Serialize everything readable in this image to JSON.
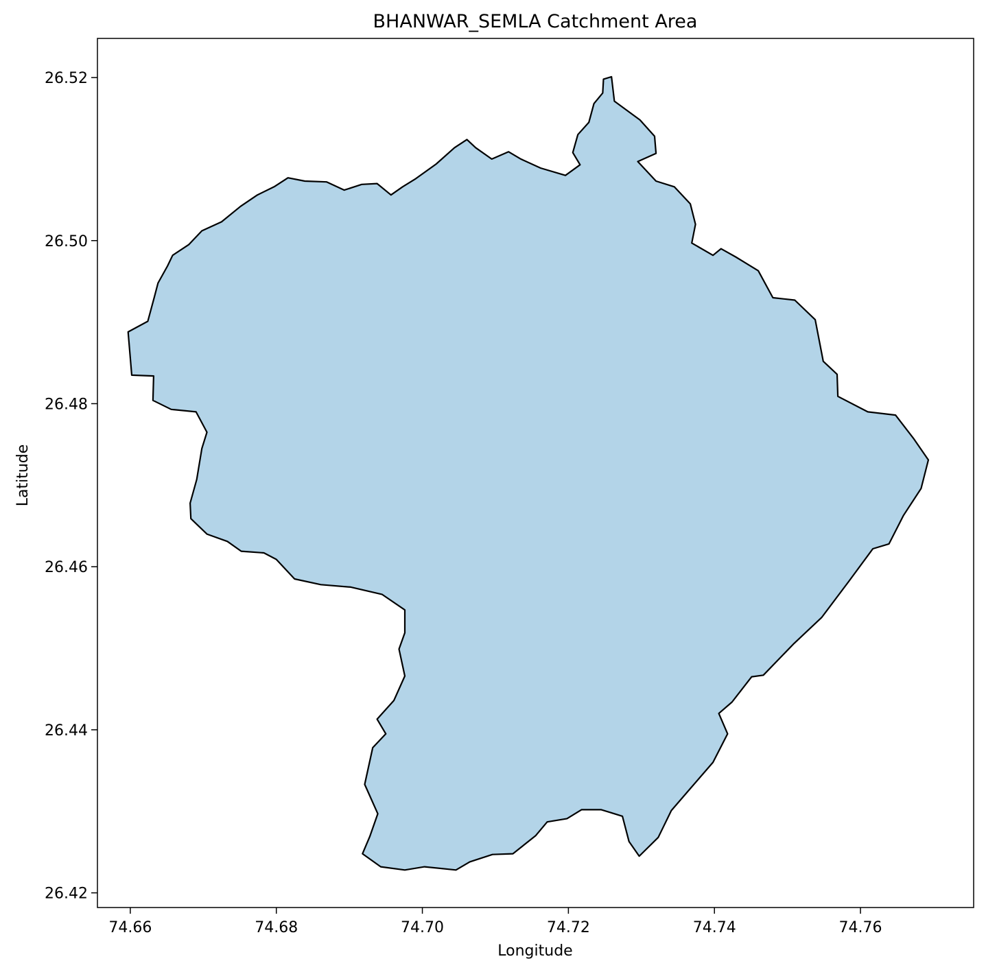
{
  "title": "BHANWAR_SEMLA Catchment Area",
  "xlabel": "Longitude",
  "ylabel": "Latitude",
  "colors": {
    "fill": "#b3d4e8",
    "outline": "#000000",
    "frame": "#000000",
    "background": "#ffffff"
  },
  "x_ticks": [
    "74.66",
    "74.68",
    "74.70",
    "74.72",
    "74.74",
    "74.76"
  ],
  "y_ticks": [
    "26.52",
    "26.50",
    "26.48",
    "26.46",
    "26.44",
    "26.42"
  ],
  "xlim": [
    74.6555,
    74.7755
  ],
  "ylim": [
    26.4182,
    26.5248
  ],
  "catchment_boundary": [
    [
      74.7259,
      26.5201
    ],
    [
      74.7263,
      26.5171
    ],
    [
      74.7298,
      26.5148
    ],
    [
      74.7318,
      26.5128
    ],
    [
      74.732,
      26.5107
    ],
    [
      74.7295,
      26.5097
    ],
    [
      74.732,
      26.5073
    ],
    [
      74.7345,
      26.5066
    ],
    [
      74.7367,
      26.5045
    ],
    [
      74.7374,
      26.502
    ],
    [
      74.7369,
      26.4997
    ],
    [
      74.7398,
      26.4982
    ],
    [
      74.7409,
      26.499
    ],
    [
      74.7429,
      26.498
    ],
    [
      74.746,
      26.4963
    ],
    [
      74.748,
      26.493
    ],
    [
      74.751,
      26.4927
    ],
    [
      74.7538,
      26.4903
    ],
    [
      74.7549,
      26.4852
    ],
    [
      74.7568,
      26.4836
    ],
    [
      74.7569,
      26.4809
    ],
    [
      74.761,
      26.479
    ],
    [
      74.7648,
      26.4786
    ],
    [
      74.7673,
      26.4757
    ],
    [
      74.7693,
      26.4731
    ],
    [
      74.7683,
      26.4696
    ],
    [
      74.7659,
      26.4663
    ],
    [
      74.7639,
      26.4628
    ],
    [
      74.7617,
      26.4622
    ],
    [
      74.7584,
      26.4582
    ],
    [
      74.7547,
      26.4538
    ],
    [
      74.7508,
      26.4505
    ],
    [
      74.7467,
      26.4467
    ],
    [
      74.7451,
      26.4465
    ],
    [
      74.7424,
      26.4434
    ],
    [
      74.7406,
      26.442
    ],
    [
      74.7418,
      26.4395
    ],
    [
      74.7398,
      26.436
    ],
    [
      74.7367,
      26.4328
    ],
    [
      74.7341,
      26.4301
    ],
    [
      74.7323,
      26.4268
    ],
    [
      74.7297,
      26.4245
    ],
    [
      74.7283,
      26.4263
    ],
    [
      74.7274,
      26.4294
    ],
    [
      74.7245,
      26.4302
    ],
    [
      74.7218,
      26.4302
    ],
    [
      74.7198,
      26.4291
    ],
    [
      74.7171,
      26.4287
    ],
    [
      74.7155,
      26.427
    ],
    [
      74.7124,
      26.4248
    ],
    [
      74.7096,
      26.4247
    ],
    [
      74.7065,
      26.4238
    ],
    [
      74.7046,
      26.4228
    ],
    [
      74.7003,
      26.4232
    ],
    [
      74.6976,
      26.4228
    ],
    [
      74.6943,
      26.4232
    ],
    [
      74.6918,
      26.4248
    ],
    [
      74.6928,
      26.4269
    ],
    [
      74.6939,
      26.4297
    ],
    [
      74.6921,
      26.4333
    ],
    [
      74.6932,
      26.4378
    ],
    [
      74.695,
      26.4395
    ],
    [
      74.6938,
      26.4413
    ],
    [
      74.6961,
      26.4436
    ],
    [
      74.6976,
      26.4466
    ],
    [
      74.6968,
      26.4499
    ],
    [
      74.6976,
      26.4519
    ],
    [
      74.6976,
      26.4547
    ],
    [
      74.6945,
      26.4566
    ],
    [
      74.6902,
      26.4575
    ],
    [
      74.6861,
      26.4578
    ],
    [
      74.6825,
      26.4585
    ],
    [
      74.68,
      26.4609
    ],
    [
      74.6783,
      26.4617
    ],
    [
      74.6752,
      26.4619
    ],
    [
      74.6733,
      26.4631
    ],
    [
      74.6705,
      26.464
    ],
    [
      74.6683,
      26.4659
    ],
    [
      74.6682,
      26.4678
    ],
    [
      74.6691,
      26.4707
    ],
    [
      74.6698,
      26.4745
    ],
    [
      74.6705,
      26.4765
    ],
    [
      74.669,
      26.479
    ],
    [
      74.6656,
      26.4793
    ],
    [
      74.6631,
      26.4804
    ],
    [
      74.6632,
      26.4834
    ],
    [
      74.6602,
      26.4835
    ],
    [
      74.6597,
      26.4888
    ],
    [
      74.6624,
      26.4901
    ],
    [
      74.6633,
      26.4931
    ],
    [
      74.6638,
      26.4948
    ],
    [
      74.6651,
      26.4969
    ],
    [
      74.6658,
      26.4982
    ],
    [
      74.668,
      26.4995
    ],
    [
      74.6698,
      26.5012
    ],
    [
      74.6725,
      26.5023
    ],
    [
      74.6751,
      26.5042
    ],
    [
      74.6774,
      26.5056
    ],
    [
      74.6797,
      26.5066
    ],
    [
      74.6816,
      26.5077
    ],
    [
      74.6839,
      26.5073
    ],
    [
      74.6869,
      26.5072
    ],
    [
      74.6893,
      26.5062
    ],
    [
      74.6917,
      26.5069
    ],
    [
      74.6938,
      26.507
    ],
    [
      74.6957,
      26.5056
    ],
    [
      74.6973,
      26.5066
    ],
    [
      74.6991,
      26.5076
    ],
    [
      74.7019,
      26.5094
    ],
    [
      74.7044,
      26.5114
    ],
    [
      74.7061,
      26.5124
    ],
    [
      74.7073,
      26.5114
    ],
    [
      74.7095,
      26.51
    ],
    [
      74.7118,
      26.5109
    ],
    [
      74.7135,
      26.51
    ],
    [
      74.7162,
      26.5089
    ],
    [
      74.7196,
      26.508
    ],
    [
      74.7216,
      26.5093
    ],
    [
      74.7206,
      26.5108
    ],
    [
      74.7213,
      26.513
    ],
    [
      74.7228,
      26.5145
    ],
    [
      74.7235,
      26.5168
    ],
    [
      74.7247,
      26.5181
    ],
    [
      74.7248,
      26.5198
    ]
  ]
}
